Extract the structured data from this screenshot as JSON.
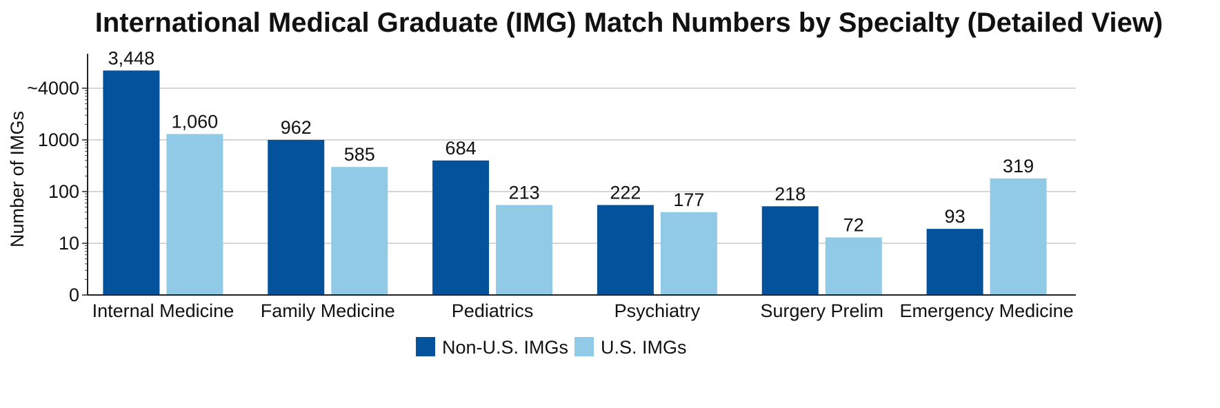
{
  "chart_data": {
    "type": "bar",
    "title": "International Medical Graduate (IMG) Match Numbers by Specialty (Detailed View)",
    "xlabel": "",
    "ylabel": "Number of IMGs",
    "y_scale": "log-like (labeled ticks 0, 10, 100, 1000, ~4000)",
    "y_ticks": [
      {
        "label": "0",
        "value": 1
      },
      {
        "label": "10",
        "value": 10
      },
      {
        "label": "100",
        "value": 100
      },
      {
        "label": "1000",
        "value": 1000
      },
      {
        "label": "~4000",
        "value": 10000
      }
    ],
    "ylim": [
      1,
      40000
    ],
    "categories": [
      "Internal Medicine",
      "Family Medicine",
      "Pediatrics",
      "Psychiatry",
      "Surgery Prelim",
      "Emergency Medicine"
    ],
    "series": [
      {
        "name": "Non-U.S. IMGs",
        "color": "#04529b",
        "values": [
          3448,
          962,
          684,
          222,
          218,
          93
        ],
        "labels": [
          "3,448",
          "962",
          "684",
          "222",
          "218",
          "93"
        ],
        "drawn_heights": [
          22000,
          1000,
          400,
          55,
          52,
          19
        ]
      },
      {
        "name": "U.S. IMGs",
        "color": "#91cae6",
        "values": [
          1060,
          585,
          213,
          177,
          72,
          319
        ],
        "labels": [
          "1,060",
          "585",
          "213",
          "177",
          "72",
          "319"
        ],
        "drawn_heights": [
          1300,
          300,
          55,
          40,
          13,
          180
        ]
      }
    ],
    "grid": true,
    "legend": "bottom-center"
  }
}
